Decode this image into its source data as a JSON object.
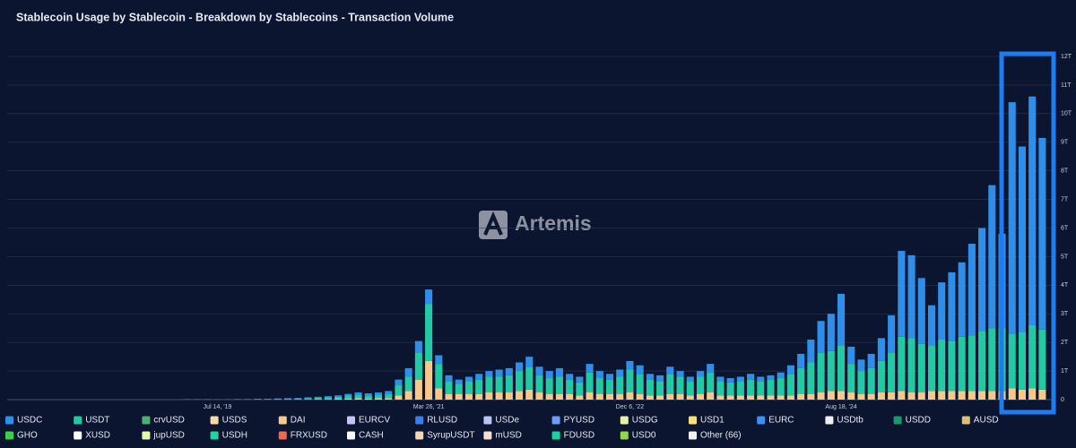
{
  "chart_data": {
    "type": "stacked-bar",
    "title": "Stablecoin Usage by Stablecoin - Breakdown by Stablecoins - Transaction Volume",
    "watermark": "Artemis",
    "categories": [
      null,
      null,
      null,
      null,
      null,
      null,
      null,
      null,
      null,
      null,
      null,
      null,
      null,
      null,
      null,
      null,
      null,
      null,
      "Jul 14, '19",
      null,
      null,
      null,
      null,
      null,
      null,
      null,
      null,
      null,
      null,
      null,
      null,
      null,
      null,
      null,
      null,
      null,
      null,
      null,
      null,
      "Mar 26, '21",
      null,
      null,
      null,
      null,
      null,
      null,
      null,
      null,
      null,
      null,
      null,
      null,
      null,
      null,
      null,
      null,
      null,
      null,
      null,
      "Dec 6, '22",
      null,
      null,
      null,
      null,
      null,
      null,
      null,
      null,
      null,
      null,
      null,
      null,
      null,
      null,
      null,
      null,
      null,
      null,
      null,
      null,
      "Aug 18, '24",
      null,
      null,
      null,
      null,
      null,
      null,
      null,
      null,
      null,
      null,
      null,
      null,
      null,
      null,
      null,
      null,
      null,
      null,
      null,
      null
    ],
    "ylim": [
      0,
      12
    ],
    "yticks": [
      0,
      {
        "value": 1,
        "label": "1T"
      },
      {
        "value": 2,
        "label": "2T"
      },
      {
        "value": 3,
        "label": "3T"
      },
      {
        "value": 4,
        "label": "4T"
      },
      {
        "value": 5,
        "label": "5T"
      },
      {
        "value": 6,
        "label": "6T"
      },
      {
        "value": 7,
        "label": "7T"
      },
      {
        "value": 8,
        "label": "8T"
      },
      {
        "value": 9,
        "label": "9T"
      },
      {
        "value": 10,
        "label": "10T"
      },
      {
        "value": 11,
        "label": "11T"
      },
      {
        "value": 12,
        "label": "12T"
      }
    ],
    "grid": true,
    "series": [
      {
        "name": "USDC",
        "color": "#2f8fe8",
        "values": [
          0,
          0,
          0,
          0,
          0,
          0,
          0,
          0,
          0,
          0,
          0,
          0,
          0,
          0,
          0,
          0,
          0,
          0,
          0.01,
          0.01,
          0.01,
          0.01,
          0.01,
          0.01,
          0.01,
          0.02,
          0.02,
          0.03,
          0.03,
          0.04,
          0.05,
          0.06,
          0.08,
          0.07,
          0.08,
          0.1,
          0.2,
          0.3,
          0.4,
          0.5,
          0.3,
          0.2,
          0.15,
          0.15,
          0.2,
          0.2,
          0.25,
          0.25,
          0.3,
          0.35,
          0.3,
          0.25,
          0.3,
          0.2,
          0.2,
          0.3,
          0.25,
          0.2,
          0.25,
          0.3,
          0.3,
          0.2,
          0.2,
          0.25,
          0.2,
          0.15,
          0.2,
          0.3,
          0.15,
          0.15,
          0.15,
          0.2,
          0.15,
          0.15,
          0.2,
          0.3,
          0.5,
          0.8,
          1.1,
          1.3,
          1.8,
          0.6,
          0.4,
          0.5,
          0.8,
          1.3,
          3.0,
          2.9,
          2.3,
          1.4,
          2.0,
          2.4,
          2.6,
          3.2,
          3.6,
          5.0,
          3.3,
          8.1,
          6.5,
          8.0,
          6.7
        ]
      },
      {
        "name": "USDT",
        "color": "#23c9a5",
        "values": [
          0,
          0,
          0,
          0,
          0,
          0,
          0,
          0,
          0,
          0,
          0,
          0,
          0,
          0,
          0,
          0.01,
          0.01,
          0.01,
          0,
          0,
          0.01,
          0.01,
          0.02,
          0.02,
          0.02,
          0.02,
          0.03,
          0.04,
          0.05,
          0.06,
          0.07,
          0.1,
          0.12,
          0.11,
          0.12,
          0.15,
          0.35,
          0.5,
          0.95,
          2.0,
          0.85,
          0.45,
          0.35,
          0.45,
          0.5,
          0.55,
          0.55,
          0.6,
          0.7,
          0.8,
          0.6,
          0.55,
          0.6,
          0.5,
          0.45,
          0.7,
          0.55,
          0.5,
          0.6,
          0.8,
          0.7,
          0.55,
          0.5,
          0.7,
          0.6,
          0.5,
          0.6,
          0.7,
          0.5,
          0.45,
          0.5,
          0.55,
          0.5,
          0.55,
          0.6,
          0.75,
          0.9,
          1.1,
          1.4,
          1.4,
          1.6,
          1.0,
          0.8,
          0.9,
          1.1,
          1.4,
          1.9,
          1.9,
          1.7,
          1.6,
          1.8,
          1.75,
          1.9,
          1.95,
          2.1,
          2.2,
          2.2,
          1.9,
          2.0,
          2.2,
          2.1
        ]
      },
      {
        "name": "crvUSD",
        "color": "#4caf72"
      },
      {
        "name": "USDS",
        "color": "#f5d9a8"
      },
      {
        "name": "DAI",
        "color": "#f6c98a",
        "values": [
          0,
          0,
          0,
          0,
          0,
          0,
          0,
          0,
          0,
          0,
          0,
          0,
          0,
          0,
          0,
          0,
          0,
          0,
          0,
          0,
          0,
          0,
          0,
          0,
          0.01,
          0.01,
          0.01,
          0.01,
          0.02,
          0.02,
          0.03,
          0.04,
          0.05,
          0.04,
          0.05,
          0.05,
          0.15,
          0.3,
          0.7,
          1.35,
          0.4,
          0.2,
          0.2,
          0.2,
          0.2,
          0.25,
          0.25,
          0.25,
          0.3,
          0.35,
          0.25,
          0.2,
          0.2,
          0.2,
          0.15,
          0.25,
          0.2,
          0.2,
          0.2,
          0.25,
          0.2,
          0.15,
          0.15,
          0.2,
          0.2,
          0.15,
          0.2,
          0.25,
          0.15,
          0.15,
          0.15,
          0.15,
          0.15,
          0.15,
          0.15,
          0.15,
          0.2,
          0.2,
          0.25,
          0.3,
          0.3,
          0.25,
          0.2,
          0.2,
          0.25,
          0.25,
          0.3,
          0.25,
          0.25,
          0.3,
          0.3,
          0.3,
          0.3,
          0.3,
          0.3,
          0.3,
          0.3,
          0.4,
          0.35,
          0.4,
          0.35
        ]
      },
      {
        "name": "EURCV",
        "color": "#c9c3f3"
      },
      {
        "name": "RLUSD",
        "color": "#3a7ef0"
      },
      {
        "name": "USDe",
        "color": "#b9c4f0"
      },
      {
        "name": "PYUSD",
        "color": "#6f9cf5"
      },
      {
        "name": "USDG",
        "color": "#e8f0a8"
      },
      {
        "name": "USD1",
        "color": "#f5e07a"
      },
      {
        "name": "EURC",
        "color": "#3d8ef0"
      },
      {
        "name": "USDtb",
        "color": "#f0f0f0"
      },
      {
        "name": "USDD",
        "color": "#149a6b"
      },
      {
        "name": "AUSD",
        "color": "#e0c070"
      },
      {
        "name": "GHO",
        "color": "#3ad14a"
      },
      {
        "name": "XUSD",
        "color": "#ffffff"
      },
      {
        "name": "jupUSD",
        "color": "#e6f5b0"
      },
      {
        "name": "USDH",
        "color": "#1fd6a0"
      },
      {
        "name": "FRXUSD",
        "color": "#f06a4a"
      },
      {
        "name": "CASH",
        "color": "#ffffff"
      },
      {
        "name": "SyrupUSDT",
        "color": "#f6d5b5"
      },
      {
        "name": "mUSD",
        "color": "#f3e0d0"
      },
      {
        "name": "FDUSD",
        "color": "#16d49a"
      },
      {
        "name": "USD0",
        "color": "#8fd94a"
      },
      {
        "name": "Other (66)",
        "color": "#f2f2f2"
      }
    ]
  }
}
